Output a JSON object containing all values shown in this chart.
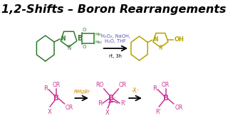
{
  "title": "1,2-Shifts – Boron Rearrangements",
  "title_fontsize": 11.5,
  "bg_color": "#ffffff",
  "reagents_line1": "H₂O₂, NaOH,",
  "reagents_line2": "H₂O, THF",
  "conditions": "rt, 3h",
  "reagent_color": "#5555bb",
  "label_rmgbr": "RMgBr",
  "label_x": "-X⁻",
  "label_color": "#cc8800",
  "gc": "#2d7a2d",
  "yc": "#b8a000",
  "pk": "#cc3399",
  "lc": "#000000"
}
